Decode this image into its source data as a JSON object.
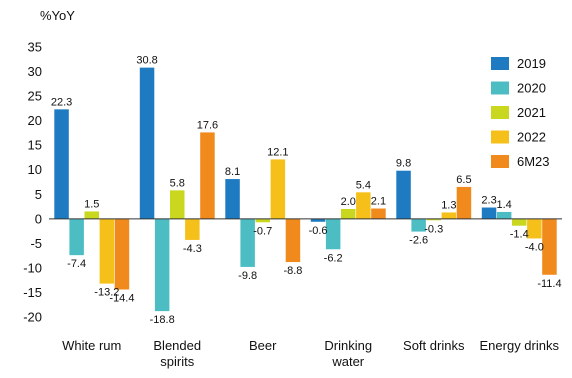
{
  "chart_data": {
    "type": "bar",
    "title": "",
    "ylabel": "%YoY",
    "xlabel": "",
    "ylim": [
      -20,
      35
    ],
    "yticks": [
      35,
      30,
      25,
      20,
      15,
      10,
      5,
      0,
      -5,
      -10,
      -15,
      -20
    ],
    "grid": false,
    "legend_position": "top-right",
    "categories": [
      [
        "White rum"
      ],
      [
        "Blended",
        "spirits"
      ],
      [
        "Beer"
      ],
      [
        "Drinking",
        "water"
      ],
      [
        "Soft drinks"
      ],
      [
        "Energy drinks"
      ]
    ],
    "series": [
      {
        "name": "2019",
        "color": "#1f7bc1",
        "values": [
          22.3,
          30.8,
          8.1,
          -0.6,
          9.8,
          2.3
        ]
      },
      {
        "name": "2020",
        "color": "#4dbdc4",
        "values": [
          -7.4,
          -18.8,
          -9.8,
          -6.2,
          -2.6,
          1.4
        ]
      },
      {
        "name": "2021",
        "color": "#c9d81f",
        "values": [
          1.5,
          5.8,
          -0.7,
          2.0,
          -0.3,
          -1.4
        ]
      },
      {
        "name": "2022",
        "color": "#f5c01a",
        "values": [
          -13.2,
          -4.3,
          12.1,
          5.4,
          1.3,
          -4.0
        ]
      },
      {
        "name": "6M23",
        "color": "#f08a1c",
        "values": [
          -14.4,
          17.6,
          -8.8,
          2.1,
          6.5,
          -11.4
        ]
      }
    ]
  }
}
